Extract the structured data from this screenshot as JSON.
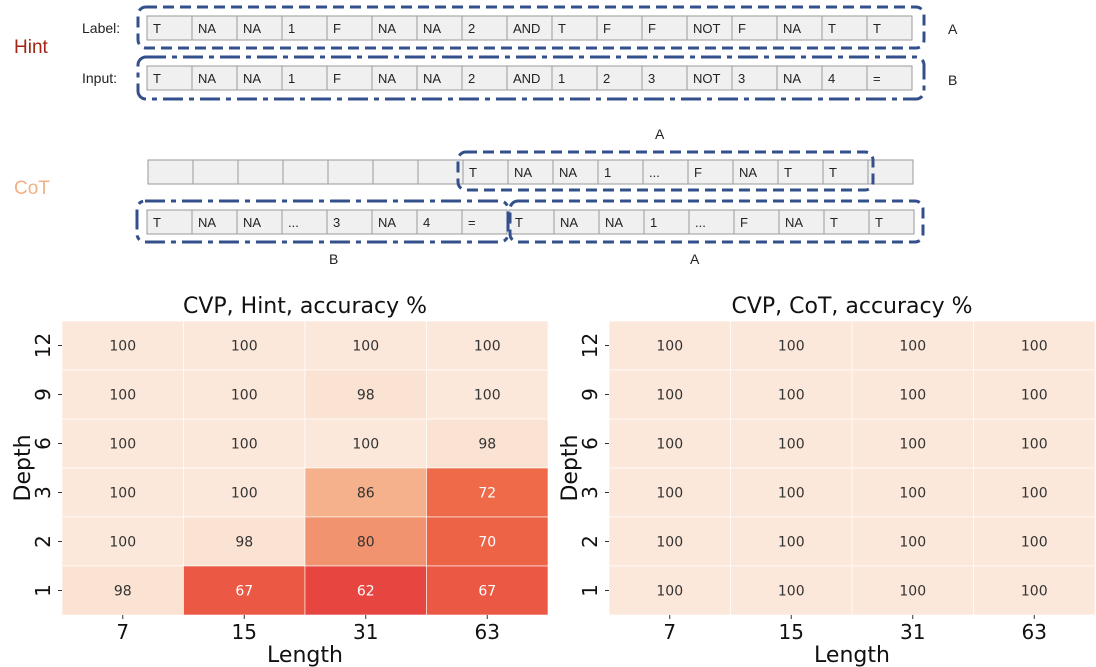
{
  "diagram": {
    "hint_label": "Hint",
    "cot_label": "CoT",
    "label_row_caption": "Label:",
    "input_row_caption": "Input:",
    "label_tokens": [
      "T",
      "NA",
      "NA",
      "1",
      "F",
      "NA",
      "NA",
      "2",
      "AND",
      "T",
      "F",
      "F",
      "NOT",
      "F",
      "NA",
      "T",
      "T"
    ],
    "input_tokens": [
      "T",
      "NA",
      "NA",
      "1",
      "F",
      "NA",
      "NA",
      "2",
      "AND",
      "1",
      "2",
      "3",
      "NOT",
      "3",
      "NA",
      "4",
      "="
    ],
    "hint_marker_label": "A",
    "hint_marker_input": "B",
    "cot_top_empty_count": 7,
    "cot_top_tokens": [
      "T",
      "NA",
      "NA",
      "1",
      "...",
      "F",
      "NA",
      "T",
      "T",
      ""
    ],
    "cot_top_marker": "A",
    "cot_bottom_left_tokens": [
      "T",
      "NA",
      "NA",
      "...",
      "3",
      "NA",
      "4",
      "="
    ],
    "cot_bottom_right_tokens": [
      "T",
      "NA",
      "NA",
      "1",
      "...",
      "F",
      "NA",
      "T",
      "T"
    ],
    "cot_bottom_marker_left": "B",
    "cot_bottom_marker_right": "A",
    "colors": {
      "hint": "#a32414",
      "cot": "#f2b184",
      "dash": "#34508c",
      "cell_fill": "#f0f0f0",
      "cell_stroke": "#9a9a9a"
    }
  },
  "chart_data": [
    {
      "type": "heatmap",
      "title": "CVP, Hint, accuracy %",
      "xlabel": "Length",
      "ylabel": "Depth",
      "x_categories": [
        "7",
        "15",
        "31",
        "63"
      ],
      "y_categories": [
        "12",
        "9",
        "6",
        "3",
        "2",
        "1"
      ],
      "values": [
        [
          100,
          100,
          100,
          100
        ],
        [
          100,
          100,
          98,
          100
        ],
        [
          100,
          100,
          100,
          98
        ],
        [
          100,
          100,
          86,
          72
        ],
        [
          100,
          98,
          80,
          70
        ],
        [
          98,
          67,
          62,
          67
        ]
      ]
    },
    {
      "type": "heatmap",
      "title": "CVP, CoT, accuracy %",
      "xlabel": "Length",
      "ylabel": "Depth",
      "x_categories": [
        "7",
        "15",
        "31",
        "63"
      ],
      "y_categories": [
        "12",
        "9",
        "6",
        "3",
        "2",
        "1"
      ],
      "values": [
        [
          100,
          100,
          100,
          100
        ],
        [
          100,
          100,
          100,
          100
        ],
        [
          100,
          100,
          100,
          100
        ],
        [
          100,
          100,
          100,
          100
        ],
        [
          100,
          100,
          100,
          100
        ],
        [
          100,
          100,
          100,
          100
        ]
      ]
    }
  ]
}
